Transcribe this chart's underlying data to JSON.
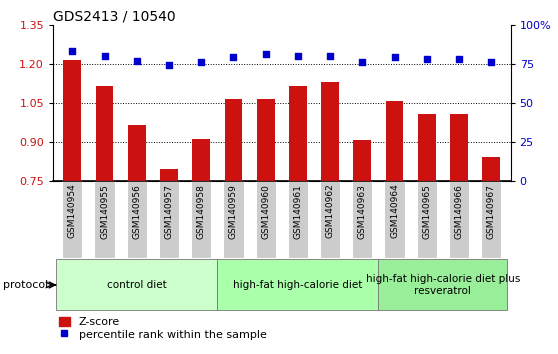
{
  "title": "GDS2413 / 10540",
  "samples": [
    "GSM140954",
    "GSM140955",
    "GSM140956",
    "GSM140957",
    "GSM140958",
    "GSM140959",
    "GSM140960",
    "GSM140961",
    "GSM140962",
    "GSM140963",
    "GSM140964",
    "GSM140965",
    "GSM140966",
    "GSM140967"
  ],
  "zscore": [
    1.215,
    1.115,
    0.965,
    0.795,
    0.91,
    1.065,
    1.065,
    1.115,
    1.13,
    0.905,
    1.055,
    1.005,
    1.005,
    0.84
  ],
  "percentile": [
    83,
    80,
    77,
    74,
    76,
    79,
    81,
    80,
    80,
    76,
    79,
    78,
    78,
    76
  ],
  "ylim_left": [
    0.75,
    1.35
  ],
  "ylim_right": [
    0,
    100
  ],
  "yticks_left": [
    0.75,
    0.9,
    1.05,
    1.2,
    1.35
  ],
  "yticks_right": [
    0,
    25,
    50,
    75,
    100
  ],
  "ytick_labels_right": [
    "0",
    "25",
    "50",
    "75",
    "100%"
  ],
  "bar_color": "#cc1111",
  "dot_color": "#0000cc",
  "background_color": "#ffffff",
  "hgrid_values": [
    0.9,
    1.05,
    1.2
  ],
  "protocol_groups": [
    {
      "label": "control diet",
      "start": 0,
      "end": 4,
      "color": "#ccffcc"
    },
    {
      "label": "high-fat high-calorie diet",
      "start": 5,
      "end": 9,
      "color": "#aaffaa"
    },
    {
      "label": "high-fat high-calorie diet plus\nresveratrol",
      "start": 10,
      "end": 13,
      "color": "#99ee99"
    }
  ],
  "protocol_label": "protocol",
  "legend_zscore": "Z-score",
  "legend_percentile": "percentile rank within the sample",
  "tick_bg_color": "#cccccc",
  "bar_width": 0.55
}
